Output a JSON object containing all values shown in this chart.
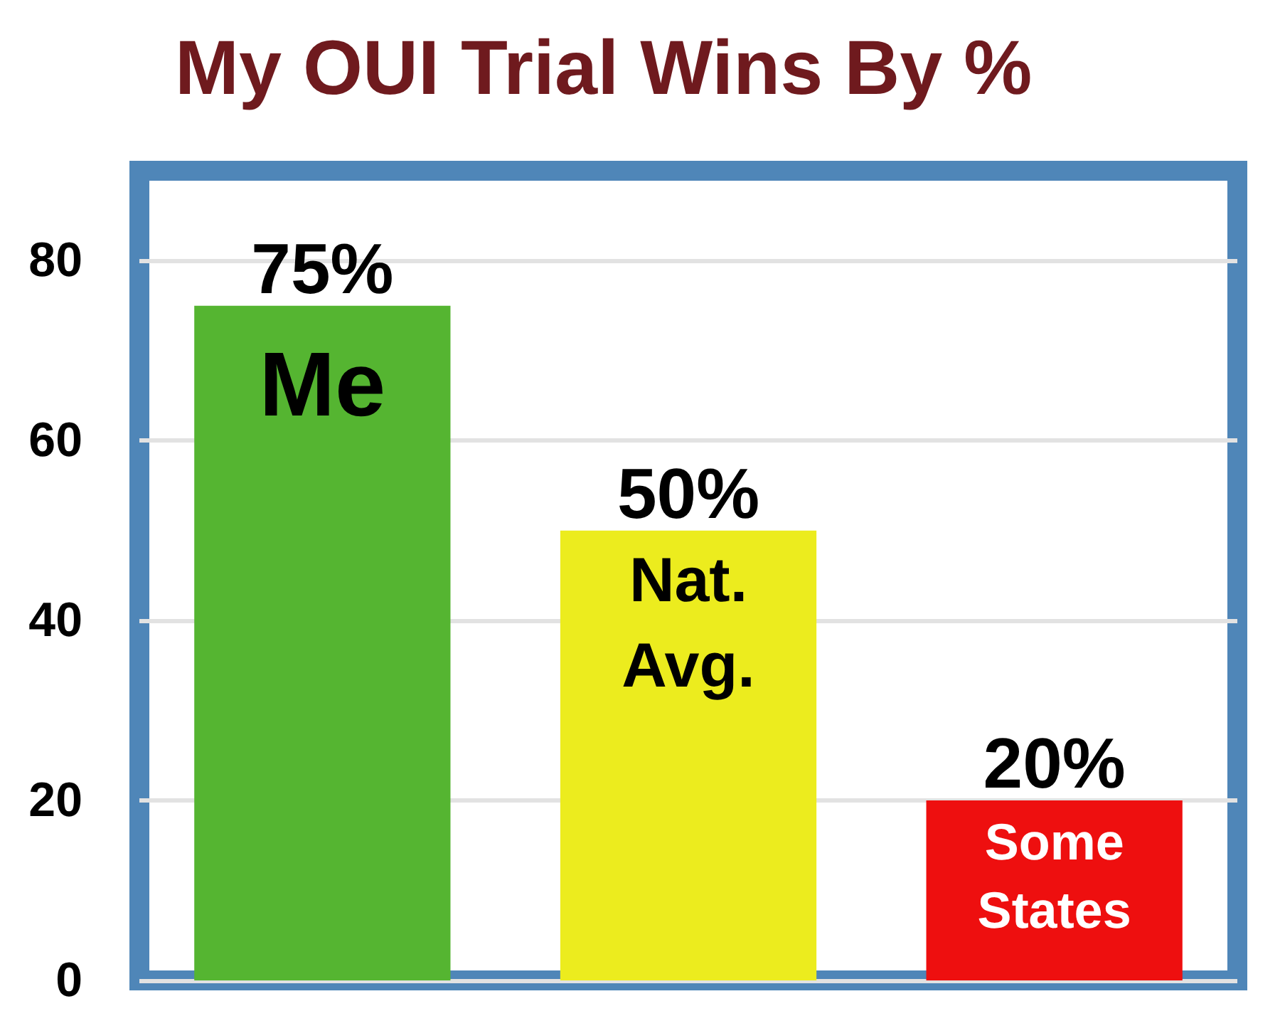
{
  "chart_data": {
    "type": "bar",
    "title": "My OUI Trial Wins By %",
    "categories": [
      "Me",
      "Nat. Avg.",
      "Some States"
    ],
    "values": [
      75,
      50,
      20
    ],
    "colors": [
      "#55b531",
      "#ecec1e",
      "#ee0f0f"
    ],
    "value_labels": [
      "75%",
      "50%",
      "20%"
    ],
    "ylim": [
      0,
      90
    ],
    "yticks": [
      0,
      20,
      40,
      60,
      80
    ],
    "grid": "y"
  }
}
